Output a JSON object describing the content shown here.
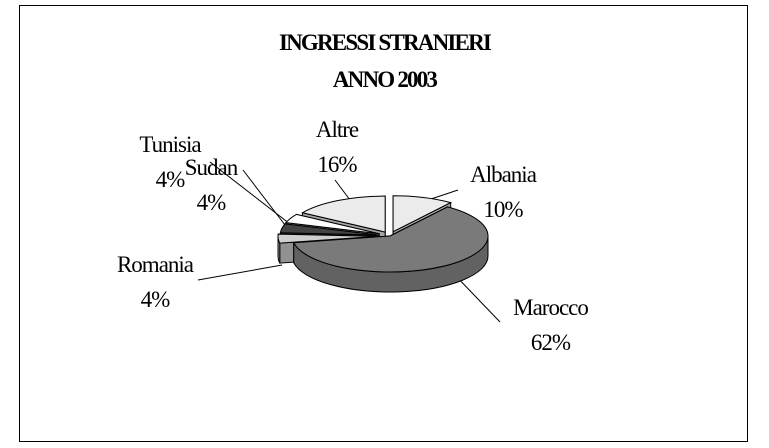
{
  "chart_data": {
    "type": "pie",
    "title": "INGRESSI STRANIERI",
    "subtitle": "ANNO 2003",
    "three_d": true,
    "exploded": true,
    "categories": [
      "Albania",
      "Marocco",
      "Romania",
      "Sudan",
      "Tunisia",
      "Altre"
    ],
    "values": [
      10,
      62,
      4,
      4,
      4,
      16
    ],
    "value_labels": [
      "10%",
      "62%",
      "4%",
      "4%",
      "4%",
      "16%"
    ],
    "colors": [
      "#ebebeb",
      "#7a7a7a",
      "#cfcfcf",
      "#444444",
      "#ffffff",
      "#ebebeb"
    ],
    "legend": "none"
  }
}
